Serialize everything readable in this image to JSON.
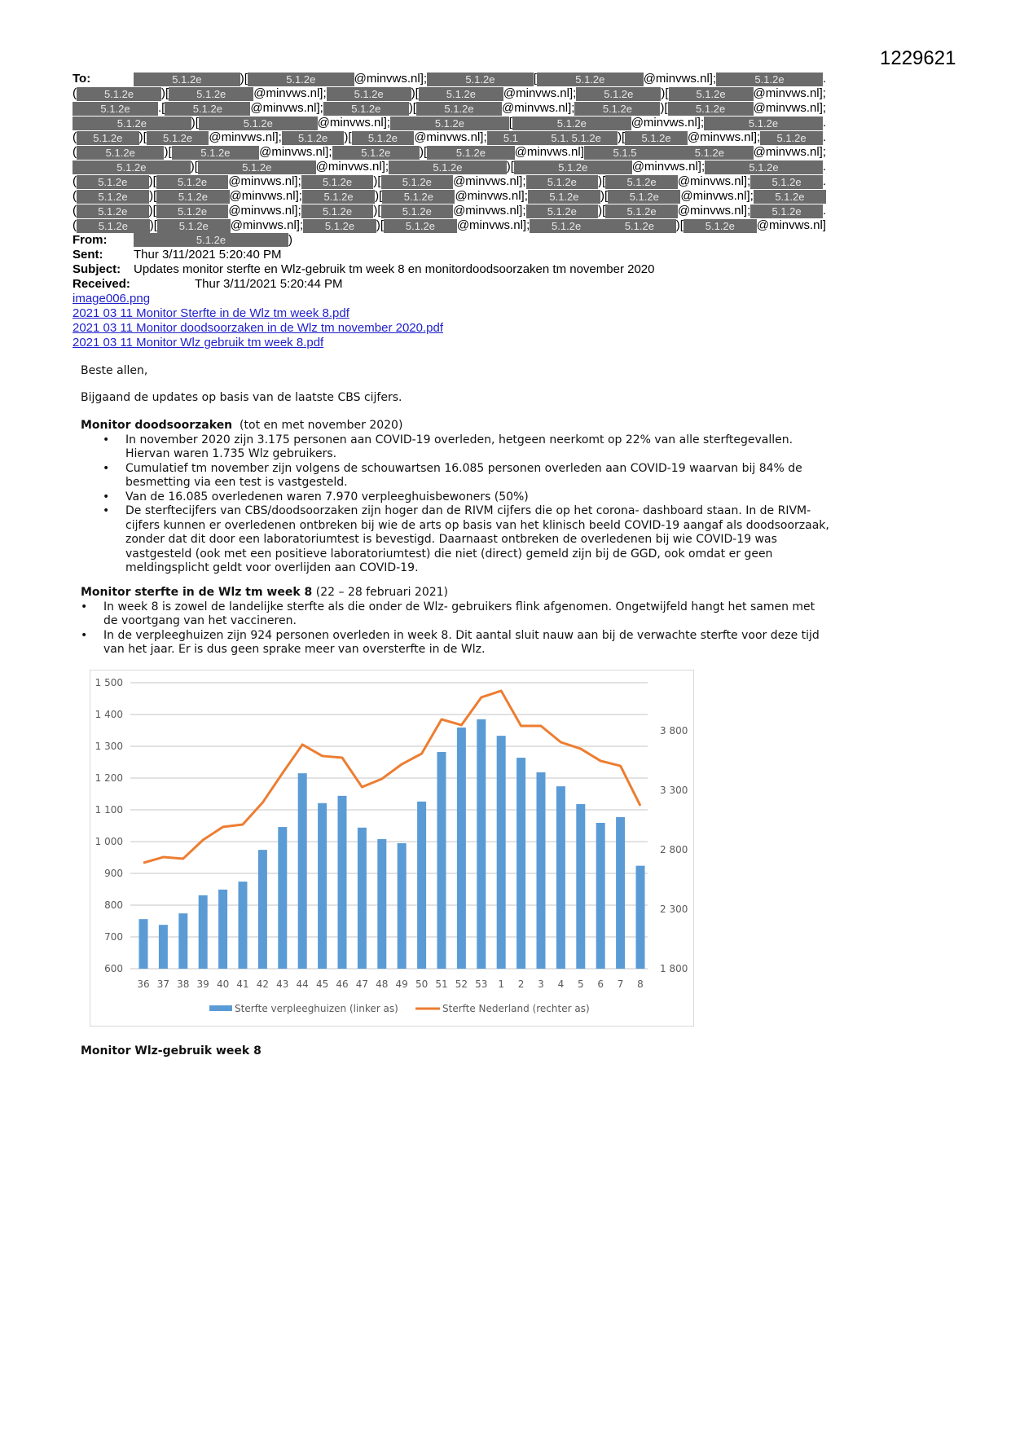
{
  "doc_id": "1229621",
  "email": {
    "to_label": "To:",
    "to_rows": [
      [
        {
          "redacted": "5.1.2e"
        },
        ")[",
        {
          "redacted": "5.1.2e"
        },
        "@minvws.nl];",
        {
          "redacted": "5.1.2e"
        },
        "[",
        {
          "redacted": "5.1.2e"
        },
        "@minvws.nl];",
        {
          "redacted": "5.1.2e"
        },
        "."
      ],
      [
        "(",
        {
          "redacted": "5.1.2e"
        },
        ")[",
        {
          "redacted": "5.1.2e"
        },
        "@minvws.nl];",
        {
          "redacted": "5.1.2e"
        },
        ")[",
        {
          "redacted": "5.1.2e"
        },
        "@minvws.nl];",
        {
          "redacted": "5.1.2e"
        },
        ")[",
        {
          "redacted": "5.1.2e"
        },
        "@minvws.nl];"
      ],
      [
        {
          "redacted": "5.1.2e"
        },
        ".[",
        {
          "redacted": "5.1.2e"
        },
        "@minvws.nl];",
        {
          "redacted": "5.1.2e"
        },
        ")[",
        {
          "redacted": "5.1.2e"
        },
        "@minvws.nl];",
        {
          "redacted": "5.1.2e"
        },
        ")[",
        {
          "redacted": "5.1.2e"
        },
        "@minvws.nl];"
      ],
      [
        {
          "redacted": "5.1.2e"
        },
        ")[",
        {
          "redacted": "5.1.2e"
        },
        "@minvws.nl];",
        {
          "redacted": "5.1.2e"
        },
        "[",
        {
          "redacted": "5.1.2e"
        },
        "@minvws.nl];",
        {
          "redacted": "5.1.2e"
        },
        "."
      ],
      [
        "(",
        {
          "redacted": "5.1.2e"
        },
        ")[",
        {
          "redacted": "5.1.2e"
        },
        "@minvws.nl];",
        {
          "redacted": "5.1.2e"
        },
        ")[",
        {
          "redacted": "5.1.2e"
        },
        "@minvws.nl];",
        {
          "redacted": "5.1"
        },
        {
          "redacted": "5.1. 5.1.2e"
        },
        ")[",
        {
          "redacted": "5.1.2e"
        },
        "@minvws.nl];",
        {
          "redacted": "5.1.2e"
        },
        "."
      ],
      [
        "(",
        {
          "redacted": "5.1.2e"
        },
        ")[",
        {
          "redacted": "5.1.2e"
        },
        "@minvws.nl];",
        {
          "redacted": "5.1.2e"
        },
        ")[",
        {
          "redacted": "5.1.2e"
        },
        "@minvws.nl]",
        {
          "redacted": "5.1.5"
        },
        {
          "redacted": "5.1.2e"
        },
        "@minvws.nl];"
      ],
      [
        {
          "redacted": "5.1.2e"
        },
        ")[",
        {
          "redacted": "5.1.2e"
        },
        "@minvws.nl];",
        {
          "redacted": "5.1.2e"
        },
        ")[",
        {
          "redacted": "5.1.2e"
        },
        "@minvws.nl];",
        {
          "redacted": "5.1.2e"
        },
        "."
      ],
      [
        "(",
        {
          "redacted": "5.1.2e"
        },
        ")[",
        {
          "redacted": "5.1.2e"
        },
        "@minvws.nl];",
        {
          "redacted": "5.1.2e"
        },
        ")[",
        {
          "redacted": "5.1.2e"
        },
        "@minvws.nl];",
        {
          "redacted": "5.1.2e"
        },
        ")[",
        {
          "redacted": "5.1.2e"
        },
        "@minvws.nl];",
        {
          "redacted": "5.1.2e"
        },
        "."
      ],
      [
        "(",
        {
          "redacted": "5.1.2e"
        },
        ")[",
        {
          "redacted": "5.1.2e"
        },
        "@minvws.nl];",
        {
          "redacted": "5.1.2e"
        },
        ")[",
        {
          "redacted": "5.1.2e"
        },
        "@minvws.nl];",
        {
          "redacted": "5.1.2e"
        },
        ")[",
        {
          "redacted": "5.1.2e"
        },
        "@minvws.nl];",
        {
          "redacted": "5.1.2e"
        }
      ],
      [
        "(",
        {
          "redacted": "5.1.2e"
        },
        ")[",
        {
          "redacted": "5.1.2e"
        },
        "@minvws.nl];",
        {
          "redacted": "5.1.2e"
        },
        ")[",
        {
          "redacted": "5.1.2e"
        },
        "@minvws.nl];",
        {
          "redacted": "5.1.2e"
        },
        ")[",
        {
          "redacted": "5.1.2e"
        },
        "@minvws.nl];",
        {
          "redacted": "5.1.2e"
        },
        "."
      ],
      [
        "(",
        {
          "redacted": "5.1.2e"
        },
        ")[",
        {
          "redacted": "5.1.2e"
        },
        "@minvws.nl];",
        {
          "redacted": "5.1.2e"
        },
        ")[",
        {
          "redacted": "5.1.2e"
        },
        "@minvws.nl];",
        {
          "redacted": "5.1.2e"
        },
        {
          "redacted": "5.1.2e"
        },
        ")[",
        {
          "redacted": "5.1.2e"
        },
        "@minvws.nl]"
      ]
    ],
    "from_label": "From:",
    "from_redacted": "5.1.2e",
    "from_suffix": ")",
    "sent_label": "Sent:",
    "sent": "Thur 3/11/2021 5:20:40 PM",
    "subject_label": "Subject:",
    "subject": "Updates monitor sterfte en Wlz-gebruik  tm week 8 en monitordoodsoorzaken tm november 2020",
    "received_label": "Received:",
    "received": "Thur 3/11/2021 5:20:44 PM",
    "attachments": [
      "image006.png",
      "2021 03 11 Monitor Sterfte in de Wlz tm week 8.pdf",
      "2021 03 11 Monitor doodsoorzaken in de Wlz tm november 2020.pdf",
      "2021 03 11 Monitor Wlz gebruik tm week 8.pdf"
    ]
  },
  "body": {
    "greeting": "Beste allen,",
    "intro": "Bijgaand de updates op basis van de laatste CBS cijfers.",
    "section1": {
      "title": "Monitor doodsoorzaken",
      "subtitle": "  (tot en met november 2020)",
      "bullets": [
        "In november 2020 zijn 3.175 personen aan COVID-19 overleden, hetgeen neerkomt op 22% van alle sterftegevallen. Hiervan waren 1.735 Wlz gebruikers.",
        "Cumulatief tm november zijn volgens de schouwartsen 16.085 personen overleden aan COVID-19 waarvan bij 84% de besmetting via een test is vastgesteld.",
        "Van de 16.085 overledenen waren 7.970 verpleeghuisbewoners (50%)",
        "De sterftecijfers van CBS/doodsoorzaken zijn hoger dan de RIVM cijfers die op het corona- dashboard staan. In de RIVM-cijfers kunnen er overledenen ontbreken bij wie de arts op basis van het klinisch beeld COVID-19 aangaf als doodsoorzaak, zonder dat dit door een laboratoriumtest is bevestigd. Daarnaast ontbreken de overledenen bij wie COVID-19 was vastgesteld (ook met een positieve laboratoriumtest) die niet (direct) gemeld zijn bij de GGD, ook omdat er geen meldingsplicht geldt voor overlijden aan COVID-19."
      ]
    },
    "section2": {
      "title": "Monitor sterfte in de Wlz tm week 8",
      "subtitle": " (22 – 28 februari 2021)",
      "bullets": [
        "In week 8 is zowel de landelijke sterfte als die onder de Wlz- gebruikers flink afgenomen. Ongetwijfeld hangt het samen met de voortgang van het vaccineren.",
        "In de verpleeghuizen zijn 924 personen overleden in week 8. Dit aantal sluit nauw aan bij de verwachte sterfte voor deze tijd van het jaar. Er is dus geen sprake meer van oversterfte in de Wlz."
      ]
    },
    "section3": {
      "title": "Monitor Wlz-gebruik week 8"
    }
  },
  "chart_data": {
    "type": "bar+line",
    "categories": [
      "36",
      "37",
      "38",
      "39",
      "40",
      "41",
      "42",
      "43",
      "44",
      "45",
      "46",
      "47",
      "48",
      "49",
      "50",
      "51",
      "52",
      "53",
      "1",
      "2",
      "3",
      "4",
      "5",
      "6",
      "7",
      "8"
    ],
    "series": [
      {
        "name": "Sterfte verpleeghuizen (linker as)",
        "type": "bar",
        "axis": "left",
        "color": "#5b9bd5",
        "values": [
          756,
          738,
          774,
          831,
          849,
          874,
          974,
          1046,
          1215,
          1121,
          1144,
          1044,
          1008,
          995,
          1126,
          1282,
          1359,
          1385,
          1333,
          1264,
          1218,
          1174,
          1118,
          1059,
          1077,
          924
        ]
      },
      {
        "name": "Sterfte Nederland (rechter as)",
        "type": "line",
        "axis": "right",
        "color": "#ed7d31",
        "values": [
          2690,
          2738,
          2725,
          2882,
          2992,
          3012,
          3197,
          3444,
          3684,
          3588,
          3574,
          3327,
          3396,
          3519,
          3608,
          3896,
          3848,
          4081,
          4136,
          3841,
          3841,
          3704,
          3649,
          3547,
          3505,
          3170
        ]
      }
    ],
    "left_axis": {
      "ylim": [
        600,
        1500
      ],
      "ticks": [
        "600",
        "700",
        "800",
        "900",
        "1 000",
        "1 100",
        "1 200",
        "1 300",
        "1 400",
        "1 500"
      ]
    },
    "right_axis": {
      "ylim": [
        1800,
        4204
      ],
      "ticks": [
        "1 800",
        "2 300",
        "2 800",
        "3 300",
        "3 800"
      ]
    },
    "grid": true,
    "legend_position": "bottom"
  }
}
